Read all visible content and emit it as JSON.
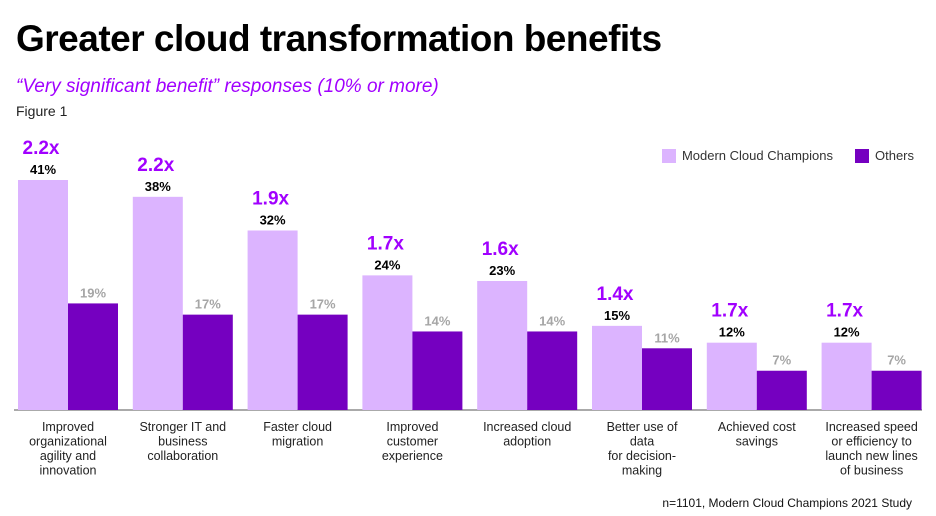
{
  "header": {
    "title": "Greater cloud transformation benefits",
    "subtitle": "“Very significant benefit” responses (10% or more)",
    "figure_label": "Figure 1"
  },
  "footnote": "n=1101, Modern Cloud Champions 2021 Study",
  "colors": {
    "champions": "#dcb4ff",
    "others": "#7500c0",
    "accent": "#a100ff"
  },
  "chart_data": {
    "type": "bar",
    "title": "Greater cloud transformation benefits",
    "xlabel": "",
    "ylabel": "",
    "ylim": [
      0,
      45
    ],
    "grid": false,
    "legend_position": "top-right",
    "categories": [
      [
        "Improved",
        "organizational",
        "agility and",
        "innovation"
      ],
      [
        "Stronger IT and",
        "business",
        "collaboration"
      ],
      [
        "Faster cloud",
        "migration"
      ],
      [
        "Improved",
        "customer",
        "experience"
      ],
      [
        "Increased cloud",
        "adoption"
      ],
      [
        "Better use of",
        "data",
        "for decision-",
        "making"
      ],
      [
        "Achieved cost",
        "savings"
      ],
      [
        "Increased speed",
        "or efficiency to",
        "launch new lines",
        "of business"
      ]
    ],
    "series": [
      {
        "name": "Modern Cloud Champions",
        "values": [
          41,
          38,
          32,
          24,
          23,
          15,
          12,
          12
        ],
        "labels": [
          "41%",
          "38%",
          "32%",
          "24%",
          "23%",
          "15%",
          "12%",
          "12%"
        ]
      },
      {
        "name": "Others",
        "values": [
          19,
          17,
          17,
          14,
          14,
          11,
          7,
          7
        ],
        "labels": [
          "19%",
          "17%",
          "17%",
          "14%",
          "14%",
          "11%",
          "7%",
          "7%"
        ]
      }
    ],
    "ratios": [
      "2.2x",
      "2.2x",
      "1.9x",
      "1.7x",
      "1.6x",
      "1.4x",
      "1.7x",
      "1.7x"
    ]
  }
}
